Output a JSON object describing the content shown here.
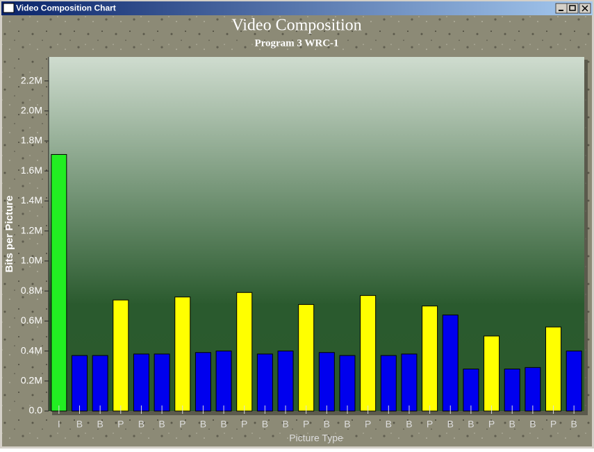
{
  "window_title": "Video Composition Chart",
  "chart_data": {
    "type": "bar",
    "title": "Video Composition",
    "subtitle": "Program 3 WRC-1",
    "x_label": "Picture Type",
    "y_label": "Bits per Picture",
    "categories": [
      "I",
      "B",
      "B",
      "P",
      "B",
      "B",
      "P",
      "B",
      "B",
      "P",
      "B",
      "B",
      "P",
      "B",
      "B",
      "P",
      "B",
      "B",
      "P",
      "B",
      "B",
      "P",
      "B",
      "B",
      "P",
      "B"
    ],
    "values": [
      1710000,
      370000,
      370000,
      740000,
      380000,
      380000,
      760000,
      390000,
      400000,
      790000,
      380000,
      400000,
      710000,
      390000,
      370000,
      770000,
      370000,
      380000,
      700000,
      640000,
      280000,
      500000,
      280000,
      290000,
      560000,
      400000
    ],
    "colors": [
      "#22ee22",
      "#0000ee",
      "#0000ee",
      "#ffff00",
      "#0000ee",
      "#0000ee",
      "#ffff00",
      "#0000ee",
      "#0000ee",
      "#ffff00",
      "#0000ee",
      "#0000ee",
      "#ffff00",
      "#0000ee",
      "#0000ee",
      "#ffff00",
      "#0000ee",
      "#0000ee",
      "#ffff00",
      "#0000ee",
      "#0000ee",
      "#ffff00",
      "#0000ee",
      "#0000ee",
      "#ffff00",
      "#0000ee"
    ],
    "ylim": [
      0,
      2360000
    ],
    "yticks": [
      {
        "value": 0,
        "label": "0.0"
      },
      {
        "value": 200000,
        "label": "0.2M"
      },
      {
        "value": 400000,
        "label": "0.4M"
      },
      {
        "value": 600000,
        "label": "0.6M"
      },
      {
        "value": 800000,
        "label": "0.8M"
      },
      {
        "value": 1000000,
        "label": "1.0M"
      },
      {
        "value": 1200000,
        "label": "1.2M"
      },
      {
        "value": 1400000,
        "label": "1.4M"
      },
      {
        "value": 1600000,
        "label": "1.6M"
      },
      {
        "value": 1800000,
        "label": "1.8M"
      },
      {
        "value": 2000000,
        "label": "2.0M"
      },
      {
        "value": 2200000,
        "label": "2.2M"
      }
    ]
  }
}
